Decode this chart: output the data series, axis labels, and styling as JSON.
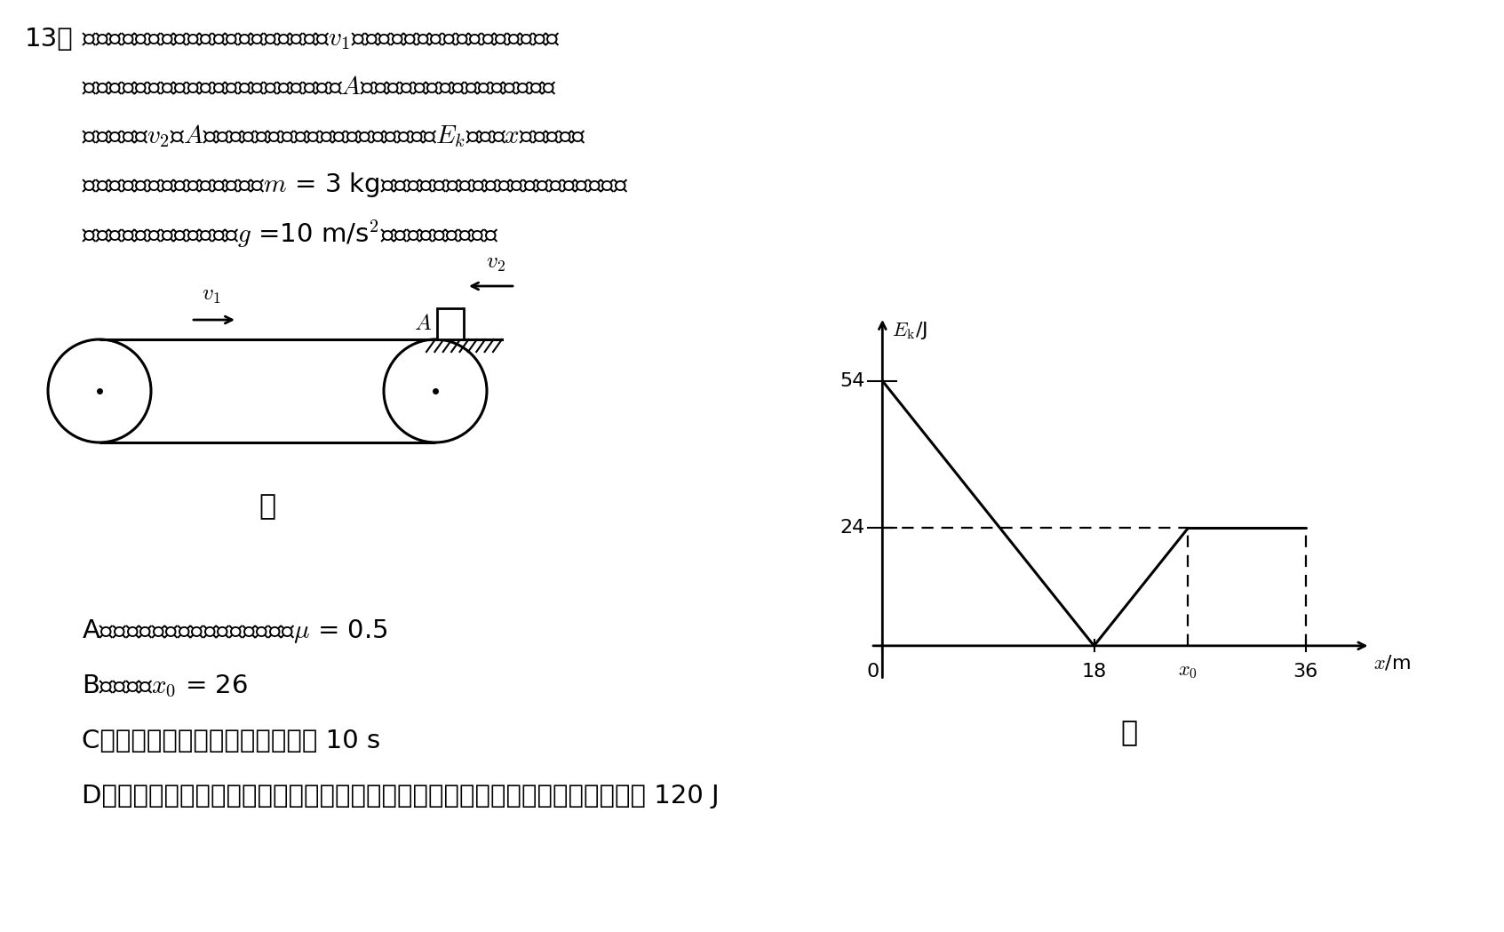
{
  "bg_color": "#ffffff",
  "text_color": "#000000",
  "fs_main": 21,
  "fs_option": 21,
  "fs_graph": 16,
  "line1": "如图甲，一足够长的水平传送带以恒定速率$v_1$顺时针匀速转动，传送带右端的光滑",
  "line2": "水平面与传送带上表面等高，二者平滑连接于$A$点。一滑块（可视为质点）以水平",
  "line3": "向左的速度$v_2$从$A$点滑上传送带，在传送带上运动时其动能$E_{k}$随路程$x$变化的关系",
  "line4": "图像如图乙所示。滑块的质量为$m$ = 3 kg，设最大静摩擦力等于滑动摩擦力，不计空",
  "line5": "气阻力，重力加速度大小为$g$ =10 m/s$^2$。下列说法正确的是",
  "opt_a": "A．滑块与传送带间的动摩擦因数为$\\mu$ = 0.5",
  "opt_b": "B．图乙中$x_0$ = 26",
  "opt_c": "C．滑块在传送带上运动的时间为 10 s",
  "opt_d": "D．从滑块滑上传送带到再次滑回水平面的过程中，传送带的电机多消耗的电能为 120 J",
  "jia": "甲",
  "yi": "乙",
  "qnum": "13．"
}
